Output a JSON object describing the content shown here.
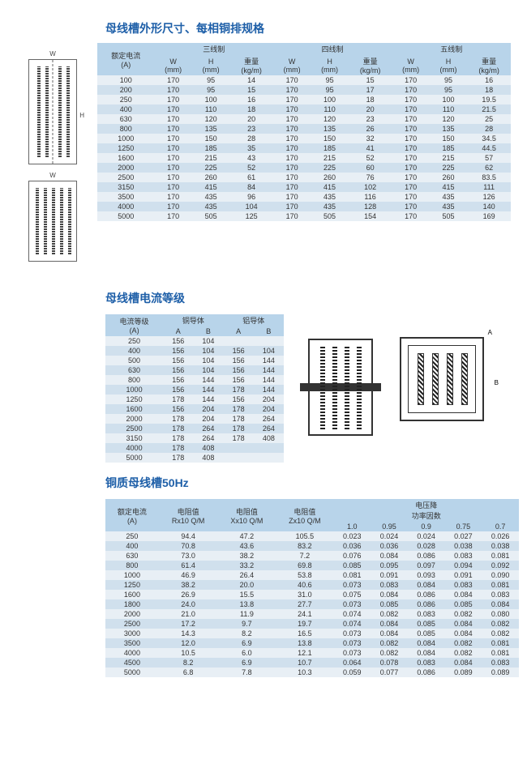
{
  "colors": {
    "title": "#1e5fa8",
    "header_bg": "#b8d4ea",
    "row_odd": "#e8eff5",
    "row_even": "#d0e0ed"
  },
  "table1": {
    "title": "母线槽外形尺寸、每相铜排规格",
    "col_rated": "额定电流",
    "col_rated_unit": "(A)",
    "groups": [
      "三线制",
      "四线制",
      "五线制"
    ],
    "subcols": [
      "W",
      "H",
      "重量"
    ],
    "subunits": [
      "(mm)",
      "(mm)",
      "(kg/m)"
    ],
    "rows": [
      {
        "a": "100",
        "v": [
          [
            "170",
            "95",
            "14"
          ],
          [
            "170",
            "95",
            "15"
          ],
          [
            "170",
            "95",
            "16"
          ]
        ]
      },
      {
        "a": "200",
        "v": [
          [
            "170",
            "95",
            "15"
          ],
          [
            "170",
            "95",
            "17"
          ],
          [
            "170",
            "95",
            "18"
          ]
        ]
      },
      {
        "a": "250",
        "v": [
          [
            "170",
            "100",
            "16"
          ],
          [
            "170",
            "100",
            "18"
          ],
          [
            "170",
            "100",
            "19.5"
          ]
        ]
      },
      {
        "a": "400",
        "v": [
          [
            "170",
            "110",
            "18"
          ],
          [
            "170",
            "110",
            "20"
          ],
          [
            "170",
            "110",
            "21.5"
          ]
        ]
      },
      {
        "a": "630",
        "v": [
          [
            "170",
            "120",
            "20"
          ],
          [
            "170",
            "120",
            "23"
          ],
          [
            "170",
            "120",
            "25"
          ]
        ]
      },
      {
        "a": "800",
        "v": [
          [
            "170",
            "135",
            "23"
          ],
          [
            "170",
            "135",
            "26"
          ],
          [
            "170",
            "135",
            "28"
          ]
        ]
      },
      {
        "a": "1000",
        "v": [
          [
            "170",
            "150",
            "28"
          ],
          [
            "170",
            "150",
            "32"
          ],
          [
            "170",
            "150",
            "34.5"
          ]
        ]
      },
      {
        "a": "1250",
        "v": [
          [
            "170",
            "185",
            "35"
          ],
          [
            "170",
            "185",
            "41"
          ],
          [
            "170",
            "185",
            "44.5"
          ]
        ]
      },
      {
        "a": "1600",
        "v": [
          [
            "170",
            "215",
            "43"
          ],
          [
            "170",
            "215",
            "52"
          ],
          [
            "170",
            "215",
            "57"
          ]
        ]
      },
      {
        "a": "2000",
        "v": [
          [
            "170",
            "225",
            "52"
          ],
          [
            "170",
            "225",
            "60"
          ],
          [
            "170",
            "225",
            "62"
          ]
        ]
      },
      {
        "a": "2500",
        "v": [
          [
            "170",
            "260",
            "61"
          ],
          [
            "170",
            "260",
            "76"
          ],
          [
            "170",
            "260",
            "83.5"
          ]
        ]
      },
      {
        "a": "3150",
        "v": [
          [
            "170",
            "415",
            "84"
          ],
          [
            "170",
            "415",
            "102"
          ],
          [
            "170",
            "415",
            "111"
          ]
        ]
      },
      {
        "a": "3500",
        "v": [
          [
            "170",
            "435",
            "96"
          ],
          [
            "170",
            "435",
            "116"
          ],
          [
            "170",
            "435",
            "126"
          ]
        ]
      },
      {
        "a": "4000",
        "v": [
          [
            "170",
            "435",
            "104"
          ],
          [
            "170",
            "435",
            "128"
          ],
          [
            "170",
            "435",
            "140"
          ]
        ]
      },
      {
        "a": "5000",
        "v": [
          [
            "170",
            "505",
            "125"
          ],
          [
            "170",
            "505",
            "154"
          ],
          [
            "170",
            "505",
            "169"
          ]
        ]
      }
    ]
  },
  "table2": {
    "title": "母线槽电流等级",
    "col_level": "电流等级",
    "col_level_unit": "(A)",
    "groups": [
      "铜导体",
      "铝导体"
    ],
    "subcols": [
      "A",
      "B"
    ],
    "rows": [
      {
        "a": "250",
        "v": [
          "156",
          "104",
          "",
          ""
        ]
      },
      {
        "a": "400",
        "v": [
          "156",
          "104",
          "156",
          "104"
        ]
      },
      {
        "a": "500",
        "v": [
          "156",
          "104",
          "156",
          "144"
        ]
      },
      {
        "a": "630",
        "v": [
          "156",
          "104",
          "156",
          "144"
        ]
      },
      {
        "a": "800",
        "v": [
          "156",
          "144",
          "156",
          "144"
        ]
      },
      {
        "a": "1000",
        "v": [
          "156",
          "144",
          "178",
          "144"
        ]
      },
      {
        "a": "1250",
        "v": [
          "178",
          "144",
          "156",
          "204"
        ]
      },
      {
        "a": "1600",
        "v": [
          "156",
          "204",
          "178",
          "204"
        ]
      },
      {
        "a": "2000",
        "v": [
          "178",
          "204",
          "178",
          "264"
        ]
      },
      {
        "a": "2500",
        "v": [
          "178",
          "264",
          "178",
          "264"
        ]
      },
      {
        "a": "3150",
        "v": [
          "178",
          "264",
          "178",
          "408"
        ]
      },
      {
        "a": "4000",
        "v": [
          "178",
          "408",
          "",
          ""
        ]
      },
      {
        "a": "5000",
        "v": [
          "178",
          "408",
          "",
          ""
        ]
      }
    ]
  },
  "table3": {
    "title": "铜质母线槽50Hz",
    "col_rated": "额定电流",
    "col_rated_unit": "(A)",
    "col_r": "电阻值",
    "col_r_unit": "Rx10 Q/M",
    "col_x": "电阻值",
    "col_x_unit": "Xx10 Q/M",
    "col_z": "电阻值",
    "col_z_unit": "Zx10 Q/M",
    "vd_group": "电压降",
    "pf_group": "功率因数",
    "pf_cols": [
      "1.0",
      "0.95",
      "0.9",
      "0.75",
      "0.7"
    ],
    "rows": [
      {
        "a": "250",
        "r": "94.4",
        "x": "47.2",
        "z": "105.5",
        "pf": [
          "0.023",
          "0.024",
          "0.024",
          "0.027",
          "0.026"
        ]
      },
      {
        "a": "400",
        "r": "70.8",
        "x": "43.6",
        "z": "83.2",
        "pf": [
          "0.036",
          "0.036",
          "0.028",
          "0.038",
          "0.038"
        ]
      },
      {
        "a": "630",
        "r": "73.0",
        "x": "38.2",
        "z": "7.2",
        "pf": [
          "0.076",
          "0.084",
          "0.086",
          "0.083",
          "0.081"
        ]
      },
      {
        "a": "800",
        "r": "61.4",
        "x": "33.2",
        "z": "69.8",
        "pf": [
          "0.085",
          "0.095",
          "0.097",
          "0.094",
          "0.092"
        ]
      },
      {
        "a": "1000",
        "r": "46.9",
        "x": "26.4",
        "z": "53.8",
        "pf": [
          "0.081",
          "0.091",
          "0.093",
          "0.091",
          "0.090"
        ]
      },
      {
        "a": "1250",
        "r": "38.2",
        "x": "20.0",
        "z": "40.6",
        "pf": [
          "0.073",
          "0.083",
          "0.084",
          "0.083",
          "0.081"
        ]
      },
      {
        "a": "1600",
        "r": "26.9",
        "x": "15.5",
        "z": "31.0",
        "pf": [
          "0.075",
          "0.084",
          "0.086",
          "0.084",
          "0.083"
        ]
      },
      {
        "a": "1800",
        "r": "24.0",
        "x": "13.8",
        "z": "27.7",
        "pf": [
          "0.073",
          "0.085",
          "0.086",
          "0.085",
          "0.084"
        ]
      },
      {
        "a": "2000",
        "r": "21.0",
        "x": "11.9",
        "z": "24.1",
        "pf": [
          "0.074",
          "0.082",
          "0.083",
          "0.082",
          "0.080"
        ]
      },
      {
        "a": "2500",
        "r": "17.2",
        "x": "9.7",
        "z": "19.7",
        "pf": [
          "0.074",
          "0.084",
          "0.085",
          "0.084",
          "0.082"
        ]
      },
      {
        "a": "3000",
        "r": "14.3",
        "x": "8.2",
        "z": "16.5",
        "pf": [
          "0.073",
          "0.084",
          "0.085",
          "0.084",
          "0.082"
        ]
      },
      {
        "a": "3500",
        "r": "12.0",
        "x": "6.9",
        "z": "13.8",
        "pf": [
          "0.073",
          "0.082",
          "0.084",
          "0.082",
          "0.081"
        ]
      },
      {
        "a": "4000",
        "r": "10.5",
        "x": "6.0",
        "z": "12.1",
        "pf": [
          "0.073",
          "0.082",
          "0.084",
          "0.082",
          "0.081"
        ]
      },
      {
        "a": "4500",
        "r": "8.2",
        "x": "6.9",
        "z": "10.7",
        "pf": [
          "0.064",
          "0.078",
          "0.083",
          "0.084",
          "0.083"
        ]
      },
      {
        "a": "5000",
        "r": "6.8",
        "x": "7.8",
        "z": "10.3",
        "pf": [
          "0.059",
          "0.077",
          "0.086",
          "0.089",
          "0.089"
        ]
      }
    ]
  },
  "diagram_labels": {
    "w": "W",
    "h": "H",
    "a": "A",
    "b": "B"
  }
}
